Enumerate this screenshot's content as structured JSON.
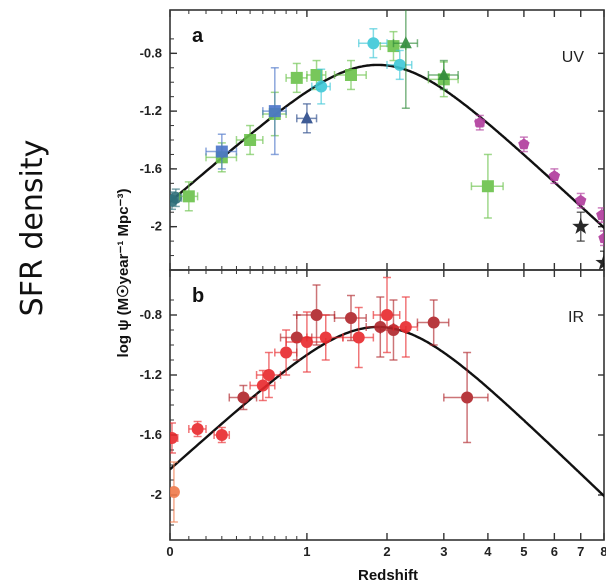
{
  "figure": {
    "side_label": "SFR density",
    "ylabel": "log ψ (M☉year⁻¹ Mpc⁻³)",
    "xlabel": "Redshift"
  },
  "chart_data": [
    {
      "type": "scatter",
      "panel": "a",
      "band": "UV",
      "x_scale": "log(1+z)",
      "ylim": [
        -2.3,
        -0.5
      ],
      "yticks": [
        -0.8,
        -1.2,
        -1.6,
        -2
      ],
      "ytick_labels": [
        "-0.8",
        "-1.2",
        "-1.6",
        "-2"
      ],
      "fit_curve": true,
      "colors": {
        "green": "#6ac24a",
        "blue": "#4a74c9",
        "cyan": "#3cc8d8",
        "magenta": "#b03a9c",
        "navy": "#2a4a8a",
        "teal": "#2f6f7a",
        "dark-green": "#2f8a3a",
        "black": "#111111"
      },
      "points": [
        {
          "x": 0.01,
          "y": -1.82,
          "xerr": [
            0.01,
            0.02
          ],
          "yerr": 0.06,
          "color": "teal",
          "marker": "circle"
        },
        {
          "x": 0.03,
          "y": -1.8,
          "xerr": [
            0.02,
            0.03
          ],
          "yerr": 0.06,
          "color": "teal",
          "marker": "circle"
        },
        {
          "x": 0.1,
          "y": -1.79,
          "xerr": [
            0.05,
            0.05
          ],
          "yerr": 0.1,
          "color": "green",
          "marker": "square"
        },
        {
          "x": 0.3,
          "y": -1.52,
          "xerr": [
            0.1,
            0.1
          ],
          "yerr": 0.1,
          "color": "green",
          "marker": "square"
        },
        {
          "x": 0.3,
          "y": -1.48,
          "xerr": [
            0.1,
            0.1
          ],
          "yerr": 0.12,
          "color": "blue",
          "marker": "square"
        },
        {
          "x": 0.5,
          "y": -1.4,
          "xerr": [
            0.1,
            0.1
          ],
          "yerr": 0.1,
          "color": "green",
          "marker": "square"
        },
        {
          "x": 0.7,
          "y": -1.22,
          "xerr": [
            0.1,
            0.1
          ],
          "yerr": 0.15,
          "color": "green",
          "marker": "square"
        },
        {
          "x": 0.7,
          "y": -1.2,
          "xerr": [
            0.1,
            0.1
          ],
          "yerr": 0.3,
          "color": "blue",
          "marker": "square"
        },
        {
          "x": 0.9,
          "y": -0.97,
          "xerr": [
            0.1,
            0.1
          ],
          "yerr": 0.1,
          "color": "green",
          "marker": "square"
        },
        {
          "x": 1.0,
          "y": -1.25,
          "xerr": [
            0.1,
            0.1
          ],
          "yerr": 0.1,
          "color": "navy",
          "marker": "triangle"
        },
        {
          "x": 1.1,
          "y": -0.95,
          "xerr": [
            0.1,
            0.1
          ],
          "yerr": 0.1,
          "color": "green",
          "marker": "square"
        },
        {
          "x": 1.15,
          "y": -1.03,
          "xerr": [
            0.1,
            0.1
          ],
          "yerr": 0.12,
          "color": "cyan",
          "marker": "circle"
        },
        {
          "x": 1.5,
          "y": -0.95,
          "xerr": [
            0.2,
            0.2
          ],
          "yerr": 0.1,
          "color": "green",
          "marker": "square"
        },
        {
          "x": 1.8,
          "y": -0.73,
          "xerr": [
            0.2,
            0.2
          ],
          "yerr": 0.1,
          "color": "cyan",
          "marker": "circle"
        },
        {
          "x": 2.1,
          "y": -0.75,
          "xerr": [
            0.2,
            0.2
          ],
          "yerr": 0.1,
          "color": "green",
          "marker": "square"
        },
        {
          "x": 2.2,
          "y": -0.88,
          "xerr": [
            0.2,
            0.2
          ],
          "yerr": 0.1,
          "color": "cyan",
          "marker": "circle"
        },
        {
          "x": 2.3,
          "y": -0.73,
          "xerr": [
            0.2,
            0.2
          ],
          "yerr": 0.45,
          "color": "dark-green",
          "marker": "triangle"
        },
        {
          "x": 3.0,
          "y": -0.98,
          "xerr": [
            0.3,
            0.3
          ],
          "yerr": 0.12,
          "color": "green",
          "marker": "square"
        },
        {
          "x": 3.0,
          "y": -0.95,
          "xerr": [
            0.3,
            0.3
          ],
          "yerr": 0.1,
          "color": "dark-green",
          "marker": "triangle"
        },
        {
          "x": 3.8,
          "y": -1.28,
          "xerr": [
            0.1,
            0.1
          ],
          "yerr": 0.05,
          "color": "magenta",
          "marker": "pentagon"
        },
        {
          "x": 4.0,
          "y": -1.72,
          "xerr": [
            0.4,
            0.4
          ],
          "yerr": 0.22,
          "color": "green",
          "marker": "square"
        },
        {
          "x": 5.0,
          "y": -1.43,
          "xerr": [
            0.1,
            0.1
          ],
          "yerr": 0.05,
          "color": "magenta",
          "marker": "pentagon"
        },
        {
          "x": 6.0,
          "y": -1.65,
          "xerr": [
            0.1,
            0.1
          ],
          "yerr": 0.05,
          "color": "magenta",
          "marker": "pentagon"
        },
        {
          "x": 7.0,
          "y": -1.82,
          "xerr": [
            0.1,
            0.1
          ],
          "yerr": 0.05,
          "color": "magenta",
          "marker": "pentagon"
        },
        {
          "x": 7.0,
          "y": -2.0,
          "xerr": [
            0.0,
            0.0
          ],
          "yerr": 0.1,
          "color": "black",
          "marker": "star"
        },
        {
          "x": 7.9,
          "y": -1.92,
          "xerr": [
            0.1,
            0.1
          ],
          "yerr": 0.05,
          "color": "magenta",
          "marker": "pentagon"
        },
        {
          "x": 8.0,
          "y": -2.08,
          "xerr": [
            0.05,
            0.05
          ],
          "yerr": 0.05,
          "color": "magenta",
          "marker": "pentagon"
        },
        {
          "x": 8.0,
          "y": -2.25,
          "xerr": [
            0.0,
            0.0
          ],
          "yerr": 0.08,
          "color": "black",
          "marker": "star"
        }
      ]
    },
    {
      "type": "scatter",
      "panel": "b",
      "band": "IR",
      "x_scale": "log(1+z)",
      "ylim": [
        -2.3,
        -0.5
      ],
      "yticks": [
        -0.8,
        -1.2,
        -1.6,
        -2
      ],
      "ytick_labels": [
        "-0.8",
        "-1.2",
        "-1.6",
        "-2"
      ],
      "fit_curve": true,
      "colors": {
        "red": "#e8282c",
        "dark-red": "#b0242a",
        "orange": "#f07a4a"
      },
      "points": [
        {
          "x": 0.01,
          "y": -1.62,
          "xerr": [
            0.01,
            0.03
          ],
          "yerr": 0.1,
          "color": "red",
          "marker": "circle"
        },
        {
          "x": 0.02,
          "y": -1.98,
          "xerr": [
            0.01,
            0.02
          ],
          "yerr": 0.2,
          "color": "orange",
          "marker": "circle"
        },
        {
          "x": 0.15,
          "y": -1.56,
          "xerr": [
            0.05,
            0.05
          ],
          "yerr": 0.05,
          "color": "red",
          "marker": "circle"
        },
        {
          "x": 0.3,
          "y": -1.6,
          "xerr": [
            0.05,
            0.05
          ],
          "yerr": 0.05,
          "color": "red",
          "marker": "circle"
        },
        {
          "x": 0.45,
          "y": -1.35,
          "xerr": [
            0.1,
            0.1
          ],
          "yerr": 0.08,
          "color": "dark-red",
          "marker": "circle"
        },
        {
          "x": 0.6,
          "y": -1.27,
          "xerr": [
            0.1,
            0.1
          ],
          "yerr": 0.1,
          "color": "red",
          "marker": "circle"
        },
        {
          "x": 0.65,
          "y": -1.2,
          "xerr": [
            0.1,
            0.1
          ],
          "yerr": 0.15,
          "color": "red",
          "marker": "circle"
        },
        {
          "x": 0.8,
          "y": -1.05,
          "xerr": [
            0.1,
            0.1
          ],
          "yerr": 0.15,
          "color": "red",
          "marker": "circle"
        },
        {
          "x": 0.9,
          "y": -0.95,
          "xerr": [
            0.15,
            0.15
          ],
          "yerr": 0.15,
          "color": "dark-red",
          "marker": "circle"
        },
        {
          "x": 1.0,
          "y": -0.98,
          "xerr": [
            0.2,
            0.2
          ],
          "yerr": 0.2,
          "color": "red",
          "marker": "circle"
        },
        {
          "x": 1.1,
          "y": -0.8,
          "xerr": [
            0.2,
            0.2
          ],
          "yerr": 0.2,
          "color": "dark-red",
          "marker": "circle"
        },
        {
          "x": 1.2,
          "y": -0.95,
          "xerr": [
            0.2,
            0.2
          ],
          "yerr": 0.15,
          "color": "red",
          "marker": "circle"
        },
        {
          "x": 1.5,
          "y": -0.82,
          "xerr": [
            0.2,
            0.2
          ],
          "yerr": 0.15,
          "color": "dark-red",
          "marker": "circle"
        },
        {
          "x": 1.6,
          "y": -0.95,
          "xerr": [
            0.2,
            0.2
          ],
          "yerr": 0.2,
          "color": "red",
          "marker": "circle"
        },
        {
          "x": 1.9,
          "y": -0.88,
          "xerr": [
            0.2,
            0.2
          ],
          "yerr": 0.2,
          "color": "dark-red",
          "marker": "circle"
        },
        {
          "x": 2.0,
          "y": -0.8,
          "xerr": [
            0.2,
            0.2
          ],
          "yerr": 0.25,
          "color": "red",
          "marker": "circle"
        },
        {
          "x": 2.1,
          "y": -0.9,
          "xerr": [
            0.2,
            0.2
          ],
          "yerr": 0.2,
          "color": "dark-red",
          "marker": "circle"
        },
        {
          "x": 2.3,
          "y": -0.88,
          "xerr": [
            0.2,
            0.2
          ],
          "yerr": 0.2,
          "color": "red",
          "marker": "circle"
        },
        {
          "x": 2.8,
          "y": -0.85,
          "xerr": [
            0.3,
            0.3
          ],
          "yerr": 0.15,
          "color": "dark-red",
          "marker": "circle"
        },
        {
          "x": 3.5,
          "y": -1.35,
          "xerr": [
            0.5,
            0.5
          ],
          "yerr": 0.3,
          "color": "dark-red",
          "marker": "circle"
        }
      ]
    }
  ],
  "x_axis": {
    "ticks": [
      0,
      1,
      2,
      3,
      4,
      5,
      6,
      7,
      8
    ],
    "tick_labels": [
      "0",
      "1",
      "2",
      "3",
      "4",
      "5",
      "6",
      "7",
      "8"
    ]
  },
  "fit_model": {
    "peak_z": 1.9,
    "peak_value": -0.88
  }
}
